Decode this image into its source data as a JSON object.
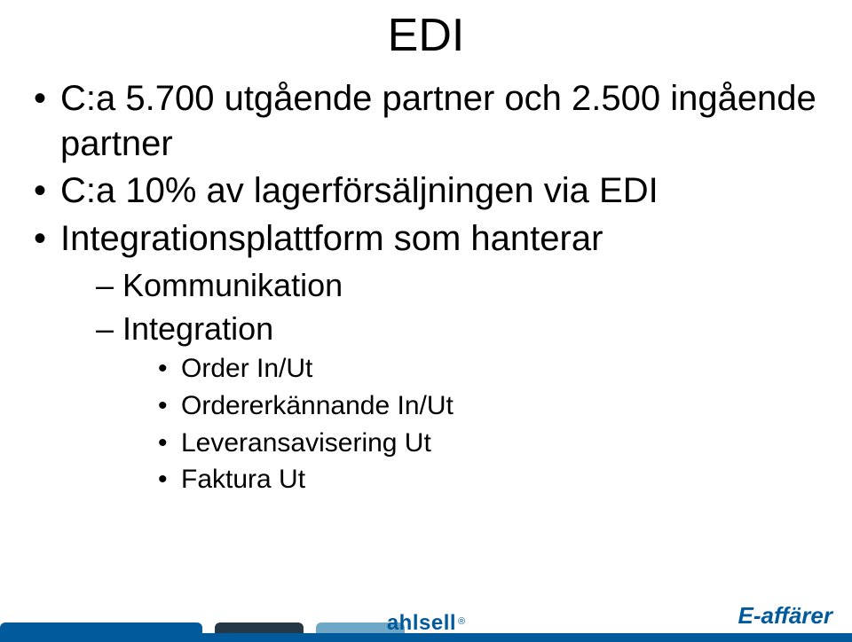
{
  "title": "EDI",
  "bullets": {
    "b1": "C:a 5.700 utgående partner och 2.500 ingående partner",
    "b2": "C:a 10% av lagerförsäljningen via EDI",
    "b3": "Integrationsplattform som hanterar",
    "l2_1": "Kommunikation",
    "l2_2": "Integration",
    "l3_1": "Order In/Ut",
    "l3_2": "Ordererkännande In/Ut",
    "l3_3": "Leveransavisering Ut",
    "l3_4": "Faktura Ut"
  },
  "footer": {
    "logo_text": "ahlsell",
    "brand_text": "E-affärer",
    "bar_color": "#005a9c",
    "cap_colors": {
      "blue": "#005a9c",
      "dark": "#233746",
      "light": "#6fa7c7"
    },
    "logo_color": "#005a9c",
    "brand_color": "#005a9c"
  },
  "style": {
    "title_fontsize": 52,
    "level1_fontsize": 40,
    "level2_fontsize": 36,
    "level3_fontsize": 30,
    "background_color": "#ffffff",
    "text_color": "#000000"
  }
}
